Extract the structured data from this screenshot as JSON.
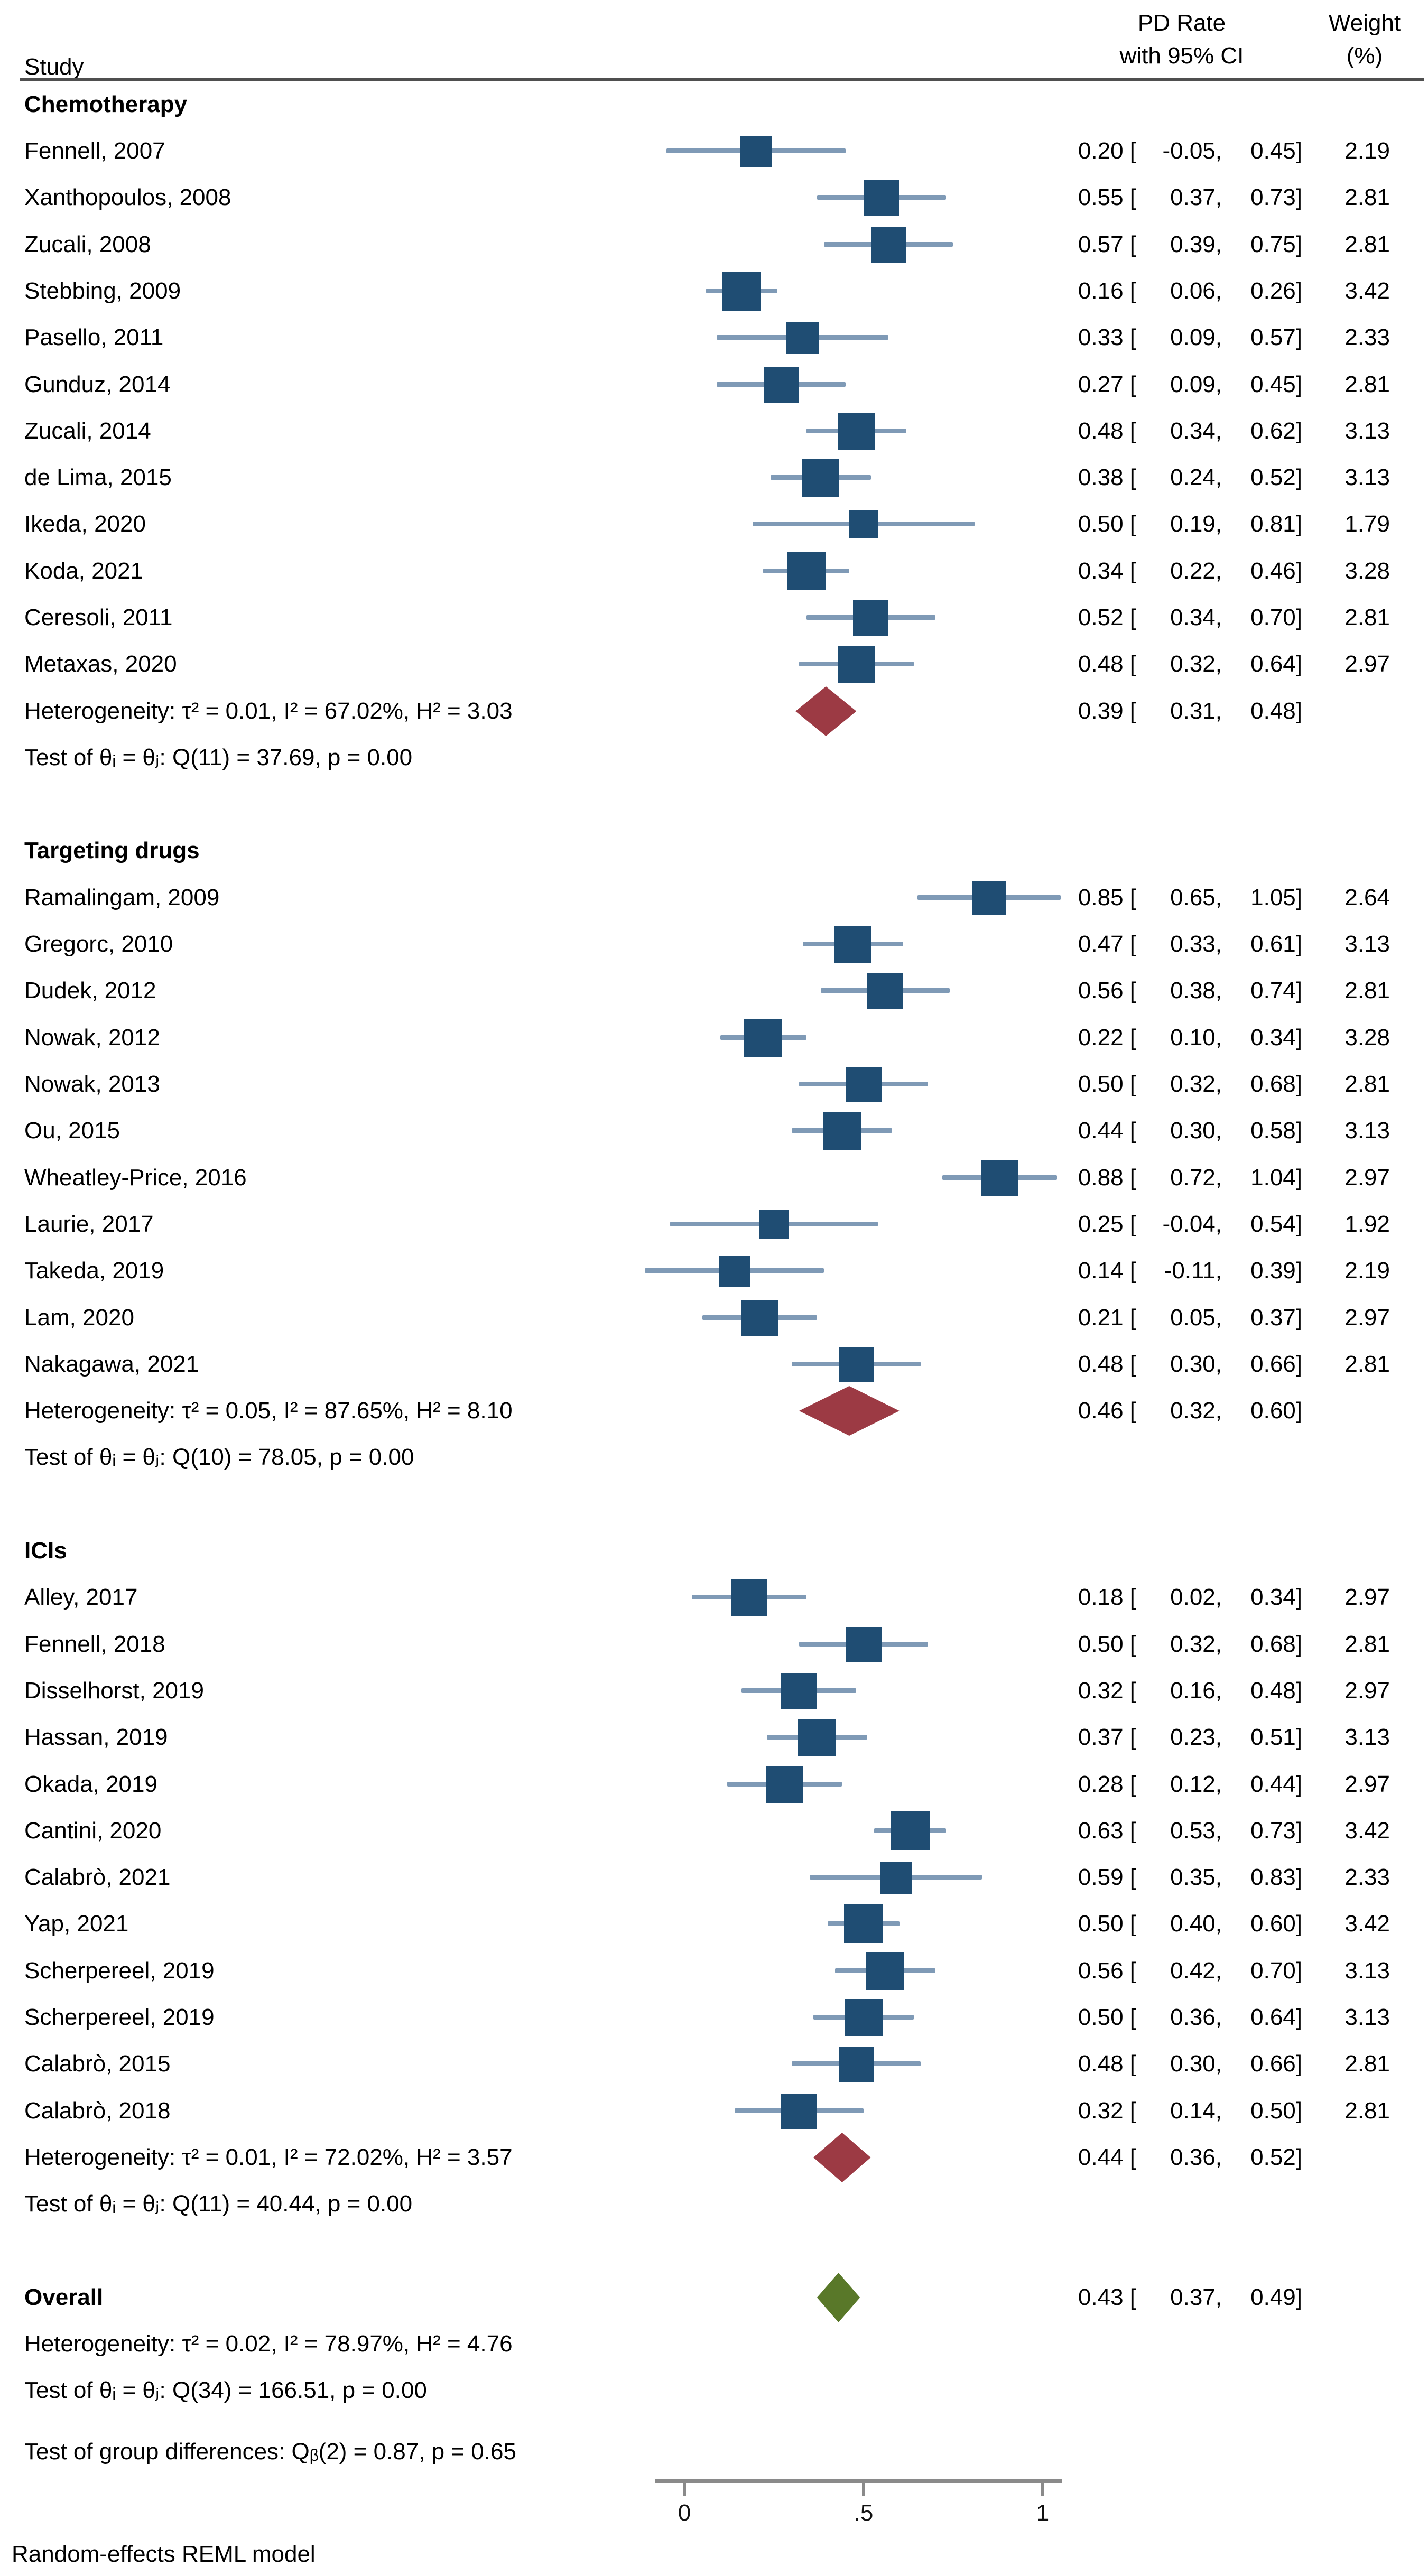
{
  "header": {
    "study_col": "Study",
    "effect_col_line1": "PD Rate",
    "effect_col_line2": "with 95% CI",
    "weight_col_line1": "Weight",
    "weight_col_line2": "(%)"
  },
  "footnote": "Random-effects REML model",
  "colors": {
    "marker_square": "#1f4d73",
    "ci_line": "#7f9ab6",
    "group_diamond": "#9c3a44",
    "overall_diamond": "#597829",
    "rule_gray": "#4f4f4f",
    "axis_gray": "#8a8a8a"
  },
  "chart_data": {
    "type": "forest",
    "effect_label": "PD Rate",
    "xlim": [
      -0.15,
      1.1
    ],
    "axis": {
      "tick_labels": [
        "0",
        ".5",
        "1"
      ],
      "tick_values": [
        0,
        0.5,
        1
      ]
    },
    "groups": [
      {
        "name": "Chemotherapy",
        "studies": [
          {
            "label": "Fennell, 2007",
            "est": 0.2,
            "lo": -0.05,
            "hi": 0.45,
            "weight": 2.19
          },
          {
            "label": "Xanthopoulos, 2008",
            "est": 0.55,
            "lo": 0.37,
            "hi": 0.73,
            "weight": 2.81
          },
          {
            "label": "Zucali, 2008",
            "est": 0.57,
            "lo": 0.39,
            "hi": 0.75,
            "weight": 2.81
          },
          {
            "label": "Stebbing, 2009",
            "est": 0.16,
            "lo": 0.06,
            "hi": 0.26,
            "weight": 3.42
          },
          {
            "label": "Pasello, 2011",
            "est": 0.33,
            "lo": 0.09,
            "hi": 0.57,
            "weight": 2.33
          },
          {
            "label": "Gunduz, 2014",
            "est": 0.27,
            "lo": 0.09,
            "hi": 0.45,
            "weight": 2.81
          },
          {
            "label": "Zucali, 2014",
            "est": 0.48,
            "lo": 0.34,
            "hi": 0.62,
            "weight": 3.13
          },
          {
            "label": "de Lima, 2015",
            "est": 0.38,
            "lo": 0.24,
            "hi": 0.52,
            "weight": 3.13
          },
          {
            "label": "Ikeda, 2020",
            "est": 0.5,
            "lo": 0.19,
            "hi": 0.81,
            "weight": 1.79
          },
          {
            "label": "Koda, 2021",
            "est": 0.34,
            "lo": 0.22,
            "hi": 0.46,
            "weight": 3.28
          },
          {
            "label": "Ceresoli, 2011",
            "est": 0.52,
            "lo": 0.34,
            "hi": 0.7,
            "weight": 2.81
          },
          {
            "label": "Metaxas, 2020",
            "est": 0.48,
            "lo": 0.32,
            "hi": 0.64,
            "weight": 2.97
          }
        ],
        "summary": {
          "est": 0.39,
          "lo": 0.31,
          "hi": 0.48
        },
        "heterogeneity": "Heterogeneity: τ² = 0.01, I² = 67.02%, H² = 3.03",
        "test": "Test of θᵢ = θⱼ: Q(11) = 37.69, p = 0.00"
      },
      {
        "name": "Targeting drugs",
        "studies": [
          {
            "label": "Ramalingam, 2009",
            "est": 0.85,
            "lo": 0.65,
            "hi": 1.05,
            "weight": 2.64
          },
          {
            "label": "Gregorc, 2010",
            "est": 0.47,
            "lo": 0.33,
            "hi": 0.61,
            "weight": 3.13
          },
          {
            "label": "Dudek, 2012",
            "est": 0.56,
            "lo": 0.38,
            "hi": 0.74,
            "weight": 2.81
          },
          {
            "label": "Nowak, 2012",
            "est": 0.22,
            "lo": 0.1,
            "hi": 0.34,
            "weight": 3.28
          },
          {
            "label": "Nowak, 2013",
            "est": 0.5,
            "lo": 0.32,
            "hi": 0.68,
            "weight": 2.81
          },
          {
            "label": "Ou, 2015",
            "est": 0.44,
            "lo": 0.3,
            "hi": 0.58,
            "weight": 3.13
          },
          {
            "label": "Wheatley-Price, 2016",
            "est": 0.88,
            "lo": 0.72,
            "hi": 1.04,
            "weight": 2.97
          },
          {
            "label": "Laurie, 2017",
            "est": 0.25,
            "lo": -0.04,
            "hi": 0.54,
            "weight": 1.92
          },
          {
            "label": "Takeda, 2019",
            "est": 0.14,
            "lo": -0.11,
            "hi": 0.39,
            "weight": 2.19
          },
          {
            "label": "Lam, 2020",
            "est": 0.21,
            "lo": 0.05,
            "hi": 0.37,
            "weight": 2.97
          },
          {
            "label": "Nakagawa, 2021",
            "est": 0.48,
            "lo": 0.3,
            "hi": 0.66,
            "weight": 2.81
          }
        ],
        "summary": {
          "est": 0.46,
          "lo": 0.32,
          "hi": 0.6
        },
        "heterogeneity": "Heterogeneity: τ² = 0.05, I² = 87.65%, H² = 8.10",
        "test": "Test of θᵢ = θⱼ: Q(10) = 78.05, p = 0.00"
      },
      {
        "name": "ICIs",
        "studies": [
          {
            "label": "Alley, 2017",
            "est": 0.18,
            "lo": 0.02,
            "hi": 0.34,
            "weight": 2.97
          },
          {
            "label": "Fennell, 2018",
            "est": 0.5,
            "lo": 0.32,
            "hi": 0.68,
            "weight": 2.81
          },
          {
            "label": "Disselhorst, 2019",
            "est": 0.32,
            "lo": 0.16,
            "hi": 0.48,
            "weight": 2.97
          },
          {
            "label": "Hassan, 2019",
            "est": 0.37,
            "lo": 0.23,
            "hi": 0.51,
            "weight": 3.13
          },
          {
            "label": "Okada, 2019",
            "est": 0.28,
            "lo": 0.12,
            "hi": 0.44,
            "weight": 2.97
          },
          {
            "label": "Cantini, 2020",
            "est": 0.63,
            "lo": 0.53,
            "hi": 0.73,
            "weight": 3.42
          },
          {
            "label": "Calabrò, 2021",
            "est": 0.59,
            "lo": 0.35,
            "hi": 0.83,
            "weight": 2.33
          },
          {
            "label": "Yap, 2021",
            "est": 0.5,
            "lo": 0.4,
            "hi": 0.6,
            "weight": 3.42
          },
          {
            "label": "Scherpereel, 2019",
            "est": 0.56,
            "lo": 0.42,
            "hi": 0.7,
            "weight": 3.13
          },
          {
            "label": "Scherpereel, 2019",
            "est": 0.5,
            "lo": 0.36,
            "hi": 0.64,
            "weight": 3.13
          },
          {
            "label": "Calabrò, 2015",
            "est": 0.48,
            "lo": 0.3,
            "hi": 0.66,
            "weight": 2.81
          },
          {
            "label": "Calabrò, 2018",
            "est": 0.32,
            "lo": 0.14,
            "hi": 0.5,
            "weight": 2.81
          }
        ],
        "summary": {
          "est": 0.44,
          "lo": 0.36,
          "hi": 0.52
        },
        "heterogeneity": "Heterogeneity: τ² = 0.01, I² = 72.02%, H² = 3.57",
        "test": "Test of θᵢ = θⱼ: Q(11) = 40.44, p = 0.00"
      }
    ],
    "overall": {
      "name": "Overall",
      "summary": {
        "est": 0.43,
        "lo": 0.37,
        "hi": 0.49
      },
      "heterogeneity": "Heterogeneity: τ² = 0.02, I² = 78.97%, H² = 4.76",
      "test": "Test of θᵢ = θⱼ: Q(34) = 166.51, p = 0.00"
    },
    "group_difference": "Test of group differences: Qᵦ(2) = 0.87, p = 0.65"
  }
}
